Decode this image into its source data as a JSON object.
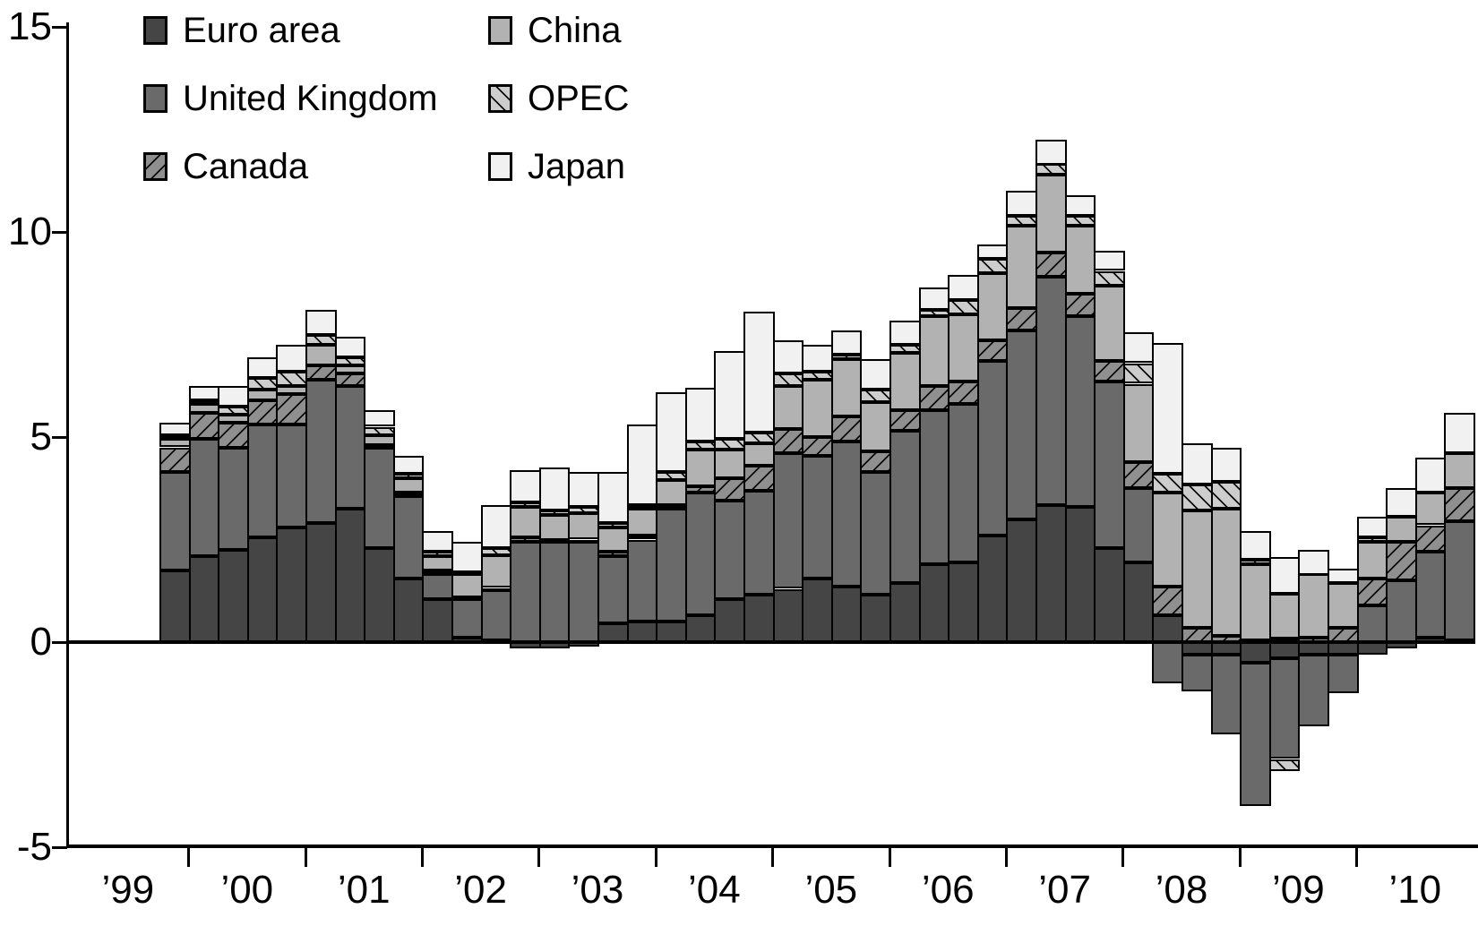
{
  "chart_data": {
    "type": "bar",
    "variant": "stacked-quarterly",
    "title": "",
    "xlabel": "",
    "ylabel": "",
    "ylim": [
      -5,
      15
    ],
    "y_ticks": [
      15,
      10,
      5,
      0,
      -5
    ],
    "grid": false,
    "legend_position": "top-left-inside",
    "x_year_labels": [
      "’99",
      "’00",
      "’01",
      "’02",
      "’03",
      "’04",
      "’05",
      "’06",
      "’07",
      "’08",
      "’09",
      "’10"
    ],
    "quarters": [
      "1999Q4",
      "2000Q1",
      "2000Q2",
      "2000Q3",
      "2000Q4",
      "2001Q1",
      "2001Q2",
      "2001Q3",
      "2001Q4",
      "2002Q1",
      "2002Q2",
      "2002Q3",
      "2002Q4",
      "2003Q1",
      "2003Q2",
      "2003Q3",
      "2003Q4",
      "2004Q1",
      "2004Q2",
      "2004Q3",
      "2004Q4",
      "2005Q1",
      "2005Q2",
      "2005Q3",
      "2005Q4",
      "2006Q1",
      "2006Q2",
      "2006Q3",
      "2006Q4",
      "2007Q1",
      "2007Q2",
      "2007Q3",
      "2007Q4",
      "2008Q1",
      "2008Q2",
      "2008Q3",
      "2008Q4",
      "2009Q1",
      "2009Q2",
      "2009Q3",
      "2009Q4",
      "2010Q1",
      "2010Q2",
      "2010Q3",
      "2010Q4"
    ],
    "stack_order_bottom_to_top": [
      "Euro area",
      "United Kingdom",
      "Canada",
      "China",
      "OPEC",
      "Japan"
    ],
    "series": [
      {
        "name": "Euro area",
        "key": "euro",
        "color": "#454545",
        "hatch": "none",
        "values": [
          1.75,
          2.1,
          2.25,
          2.55,
          2.8,
          2.9,
          3.25,
          2.3,
          1.55,
          1.05,
          0.1,
          0.05,
          -0.15,
          -0.15,
          -0.1,
          0.45,
          0.5,
          0.5,
          0.65,
          1.05,
          1.15,
          1.3,
          1.55,
          1.35,
          1.15,
          1.45,
          1.9,
          1.95,
          2.6,
          3.0,
          3.35,
          3.3,
          2.3,
          1.95,
          0.65,
          -0.3,
          -0.3,
          -0.5,
          -0.4,
          -0.3,
          -0.3,
          -0.3,
          -0.15,
          0.1,
          0.05
        ]
      },
      {
        "name": "United Kingdom",
        "key": "uk",
        "color": "#6a6a6a",
        "hatch": "none",
        "values": [
          2.4,
          2.85,
          2.5,
          2.75,
          2.5,
          3.5,
          3.0,
          2.45,
          2.0,
          0.6,
          0.95,
          1.25,
          2.45,
          2.45,
          2.45,
          1.65,
          2.0,
          2.75,
          3.0,
          2.4,
          2.55,
          3.3,
          3.0,
          3.55,
          3.0,
          3.7,
          3.75,
          3.85,
          4.25,
          4.6,
          5.55,
          4.65,
          4.05,
          1.8,
          -1.0,
          -0.9,
          -1.95,
          -3.5,
          -2.45,
          -1.75,
          -0.95,
          0.9,
          1.5,
          2.1,
          2.9
        ]
      },
      {
        "name": "Canada",
        "key": "canada",
        "color": "#8f8f8f",
        "hatch": "forward-diagonal",
        "values": [
          0.6,
          0.65,
          0.6,
          0.6,
          0.75,
          0.35,
          0.3,
          0.05,
          0.1,
          0.1,
          0.05,
          0.02,
          0.1,
          0.05,
          0.05,
          0.1,
          0.1,
          0.1,
          0.15,
          0.55,
          0.6,
          0.6,
          0.45,
          0.6,
          0.5,
          0.5,
          0.6,
          0.55,
          0.5,
          0.55,
          0.6,
          0.55,
          0.5,
          0.65,
          0.7,
          0.35,
          0.15,
          0.05,
          0.08,
          0.1,
          0.35,
          0.65,
          0.95,
          0.65,
          0.8
        ]
      },
      {
        "name": "China",
        "key": "china",
        "color": "#b2b2b2",
        "hatch": "none",
        "values": [
          0.2,
          0.2,
          0.2,
          0.25,
          0.2,
          0.5,
          0.2,
          0.25,
          0.35,
          0.35,
          0.55,
          0.8,
          0.75,
          0.6,
          0.65,
          0.6,
          0.65,
          0.6,
          0.9,
          0.7,
          0.55,
          1.05,
          1.4,
          1.4,
          1.2,
          1.4,
          1.7,
          1.65,
          1.65,
          2.0,
          1.9,
          1.65,
          1.85,
          1.9,
          2.3,
          2.85,
          3.1,
          1.85,
          1.1,
          1.55,
          1.1,
          0.9,
          0.6,
          0.8,
          0.85
        ]
      },
      {
        "name": "OPEC",
        "key": "opec",
        "color": "#cdcdcd",
        "hatch": "back-diagonal",
        "values": [
          0.1,
          0.1,
          0.2,
          0.3,
          0.35,
          0.25,
          0.2,
          0.2,
          0.1,
          0.1,
          0.05,
          0.18,
          0.1,
          0.1,
          0.15,
          0.1,
          0.1,
          0.2,
          0.2,
          0.25,
          0.25,
          0.3,
          0.2,
          0.1,
          0.3,
          0.2,
          0.15,
          0.35,
          0.35,
          0.25,
          0.25,
          0.25,
          0.35,
          0.5,
          0.45,
          0.65,
          0.65,
          0.1,
          -0.3,
          0.0,
          0.0,
          0.1,
          0.0,
          0.0,
          0.0
        ]
      },
      {
        "name": "Japan",
        "key": "japan",
        "color": "#f1f1f1",
        "hatch": "none",
        "values": [
          0.3,
          0.35,
          0.5,
          0.5,
          0.65,
          0.6,
          0.5,
          0.4,
          0.45,
          0.5,
          0.75,
          1.05,
          0.8,
          1.05,
          0.85,
          1.25,
          1.95,
          1.95,
          1.3,
          2.15,
          2.95,
          0.8,
          0.65,
          0.6,
          0.75,
          0.6,
          0.55,
          0.6,
          0.35,
          0.6,
          0.6,
          0.5,
          0.5,
          0.75,
          3.2,
          1.0,
          0.85,
          0.7,
          0.9,
          0.6,
          0.35,
          0.5,
          0.7,
          0.85,
          1.0
        ]
      }
    ]
  },
  "legend": {
    "columns": [
      [
        {
          "label": "Euro area",
          "series": "euro"
        },
        {
          "label": "United Kingdom",
          "series": "uk"
        },
        {
          "label": "Canada",
          "series": "canada"
        }
      ],
      [
        {
          "label": "China",
          "series": "china"
        },
        {
          "label": "OPEC",
          "series": "opec"
        },
        {
          "label": "Japan",
          "series": "japan"
        }
      ]
    ]
  },
  "axis_text": {
    "y_tick_labels": [
      "15",
      "10",
      "5",
      "0",
      "-5"
    ]
  }
}
